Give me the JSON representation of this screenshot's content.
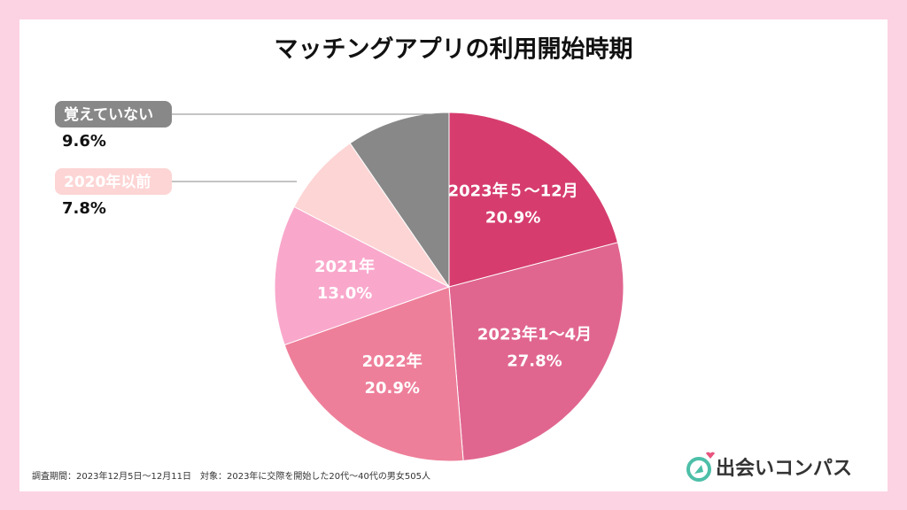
{
  "chart_data": {
    "type": "pie",
    "title": "マッチングアプリの利用開始時期",
    "categories": [
      "2023年５～12月",
      "2023年1～4月",
      "2022年",
      "2021年",
      "2020年以前",
      "覚えていない"
    ],
    "values": [
      20.9,
      27.8,
      20.9,
      13.0,
      7.8,
      9.6
    ],
    "value_labels": [
      "20.9%",
      "27.8%",
      "20.9%",
      "13.0%",
      "7.8%",
      "9.6%"
    ],
    "colors": [
      "#d63d6e",
      "#e06690",
      "#ee7f9a",
      "#f9a8cc",
      "#fdd5d5",
      "#888888"
    ]
  },
  "note": "調査期間：2023年12月5日～12月11日　対象：2023年に交際を開始した20代～40代の男女505人",
  "brand": "出会いコンパス"
}
